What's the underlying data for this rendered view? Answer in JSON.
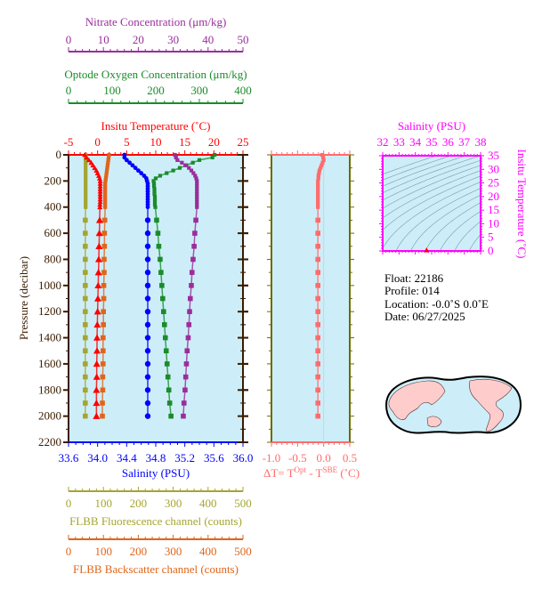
{
  "info": {
    "float": "Float:  22186",
    "profile": "Profile:  014",
    "location": "Location:  -0.0˚S   0.0˚E",
    "date": "Date:  06/27/2025"
  },
  "colors": {
    "background": "#cdeef8",
    "temperature": "#ff0000",
    "salinity": "#0000ff",
    "oxygen": "#1a8c2a",
    "nitrate": "#9b2d9b",
    "fluorescence": "#a5a530",
    "backscatter": "#e0651a",
    "delta_t": "#ff6b6b",
    "ts_inset": "#ff00ff",
    "pressure_axis": "#3a1c00",
    "delta_panel_axis": "#6b6b00",
    "land": "#ffcccc"
  },
  "chart_data": [
    {
      "type": "line",
      "name": "profile-panel",
      "ylabel": "Pressure (decibar)",
      "ylim": [
        0,
        2200
      ],
      "y_inverted": true,
      "y_ticks": [
        0,
        200,
        400,
        600,
        800,
        1000,
        1200,
        1400,
        1600,
        1800,
        2000,
        2200
      ],
      "axes": {
        "nitrate": {
          "title": "Nitrate Concentration (μm/kg)",
          "range": [
            0,
            50
          ],
          "ticks": [
            0,
            10,
            20,
            30,
            40,
            50
          ],
          "position": "top"
        },
        "oxygen": {
          "title": "Optode Oxygen Concentration (μm/kg)",
          "range": [
            0,
            400
          ],
          "ticks": [
            0,
            100,
            200,
            300,
            400
          ],
          "position": "top"
        },
        "temperature": {
          "title": "Insitu Temperature (˚C)",
          "range": [
            -5,
            25
          ],
          "ticks": [
            -5,
            0,
            5,
            10,
            15,
            20,
            25
          ],
          "position": "top"
        },
        "salinity": {
          "title": "Salinity (PSU)",
          "range": [
            33.6,
            36.0
          ],
          "ticks": [
            "33.6",
            "34.0",
            "34.4",
            "34.8",
            "35.2",
            "35.6",
            "36.0"
          ],
          "position": "bottom"
        },
        "fluorescence": {
          "title": "FLBB Fluorescence channel (counts)",
          "range": [
            0,
            500
          ],
          "ticks": [
            0,
            100,
            200,
            300,
            400,
            500
          ],
          "position": "bottom"
        },
        "backscatter": {
          "title": "FLBB Backscatter channel (counts)",
          "range": [
            0,
            500
          ],
          "ticks": [
            0,
            100,
            200,
            300,
            400,
            500
          ],
          "position": "bottom"
        }
      },
      "pressure": [
        0,
        20,
        40,
        60,
        80,
        100,
        120,
        140,
        160,
        180,
        200,
        220,
        240,
        260,
        280,
        300,
        320,
        340,
        360,
        380,
        400,
        500,
        600,
        700,
        800,
        900,
        1000,
        1100,
        1200,
        1300,
        1400,
        1500,
        1600,
        1700,
        1800,
        1900,
        2000
      ],
      "series": {
        "fluorescence": [
          49,
          49,
          49,
          49,
          49,
          49,
          49,
          49,
          49,
          49,
          49,
          49,
          49,
          49,
          49,
          49,
          49,
          49,
          49,
          49,
          49,
          48,
          48,
          48,
          48,
          48,
          48,
          48,
          48,
          48,
          48,
          48,
          48,
          48,
          48,
          48,
          48
        ],
        "backscatter": [
          116,
          115,
          114,
          113,
          112,
          111,
          110,
          109,
          108,
          107,
          106,
          105,
          105,
          105,
          105,
          105,
          105,
          105,
          105,
          105,
          105,
          104,
          103,
          103,
          102,
          102,
          101,
          101,
          100,
          100,
          99,
          99,
          99,
          98,
          98,
          97,
          97
        ],
        "temperature": [
          -2.2,
          -1.9,
          -1.5,
          -1.1,
          -0.8,
          -0.5,
          -0.2,
          0.0,
          0.2,
          0.35,
          0.45,
          0.45,
          0.45,
          0.45,
          0.45,
          0.45,
          0.45,
          0.45,
          0.45,
          0.4,
          0.4,
          0.35,
          0.3,
          0.25,
          0.2,
          0.15,
          0.1,
          0.05,
          0.0,
          -0.05,
          -0.1,
          -0.1,
          -0.15,
          -0.15,
          -0.2,
          -0.2,
          -0.2
        ],
        "salinity": [
          34.37,
          34.37,
          34.4,
          34.44,
          34.48,
          34.52,
          34.56,
          34.6,
          34.64,
          34.67,
          34.68,
          34.69,
          34.69,
          34.69,
          34.69,
          34.69,
          34.69,
          34.69,
          34.69,
          34.69,
          34.69,
          34.69,
          34.69,
          34.69,
          34.69,
          34.69,
          34.69,
          34.69,
          34.69,
          34.69,
          34.69,
          34.69,
          34.69,
          34.69,
          34.69,
          34.69,
          34.69
        ],
        "oxygen": [
          335,
          330,
          300,
          285,
          270,
          255,
          240,
          225,
          210,
          200,
          195,
          196,
          196,
          197,
          197,
          197,
          198,
          198,
          198,
          198,
          199,
          202,
          205,
          207,
          210,
          212,
          214,
          216,
          218,
          220,
          222,
          224,
          226,
          228,
          230,
          232,
          235
        ],
        "nitrate": [
          30.5,
          30.8,
          31.2,
          32.5,
          33.5,
          34.5,
          35.2,
          35.8,
          36.3,
          36.6,
          36.8,
          36.8,
          36.8,
          36.8,
          36.8,
          36.8,
          36.8,
          36.8,
          36.8,
          36.8,
          36.8,
          36.5,
          36.2,
          36.0,
          35.7,
          35.4,
          35.2,
          34.9,
          34.7,
          34.5,
          34.3,
          34.0,
          33.8,
          33.6,
          33.4,
          33.1,
          32.9
        ]
      }
    },
    {
      "type": "line",
      "name": "delta-t-panel",
      "xlabel": "ΔT= T",
      "xlabel_sup1": "Opt",
      "xlabel_mid": " - T",
      "xlabel_sup2": "SBE",
      "xlabel_end": " (˚C)",
      "xlim": [
        -1.0,
        0.5
      ],
      "x_ticks": [
        "-1.0",
        "-0.5",
        "0.0",
        "0.5"
      ],
      "ylim": [
        0,
        2200
      ],
      "values": [
        -0.03,
        -0.01,
        0.0,
        -0.02,
        -0.04,
        -0.06,
        -0.08,
        -0.09,
        -0.1,
        -0.1,
        -0.11,
        -0.11,
        -0.11,
        -0.11,
        -0.11,
        -0.11,
        -0.11,
        -0.11,
        -0.11,
        -0.11,
        -0.11,
        -0.11,
        -0.11,
        -0.11,
        -0.11,
        -0.11,
        -0.11,
        -0.11,
        -0.11,
        -0.11,
        -0.11,
        -0.11,
        -0.11,
        -0.11,
        -0.11,
        -0.11,
        -0.11
      ]
    },
    {
      "type": "scatter",
      "name": "ts-inset",
      "xlabel": "Salinity (PSU)",
      "ylabel": "Insitu Temperature (˚C)",
      "xlim": [
        32,
        38
      ],
      "ylim": [
        0,
        35
      ],
      "x_ticks": [
        32,
        33,
        34,
        35,
        36,
        37,
        38
      ],
      "y_ticks": [
        0,
        5,
        10,
        15,
        20,
        25,
        30,
        35
      ],
      "density_contours": true,
      "points": [
        {
          "s": 34.69,
          "t": 0.3
        }
      ]
    }
  ]
}
